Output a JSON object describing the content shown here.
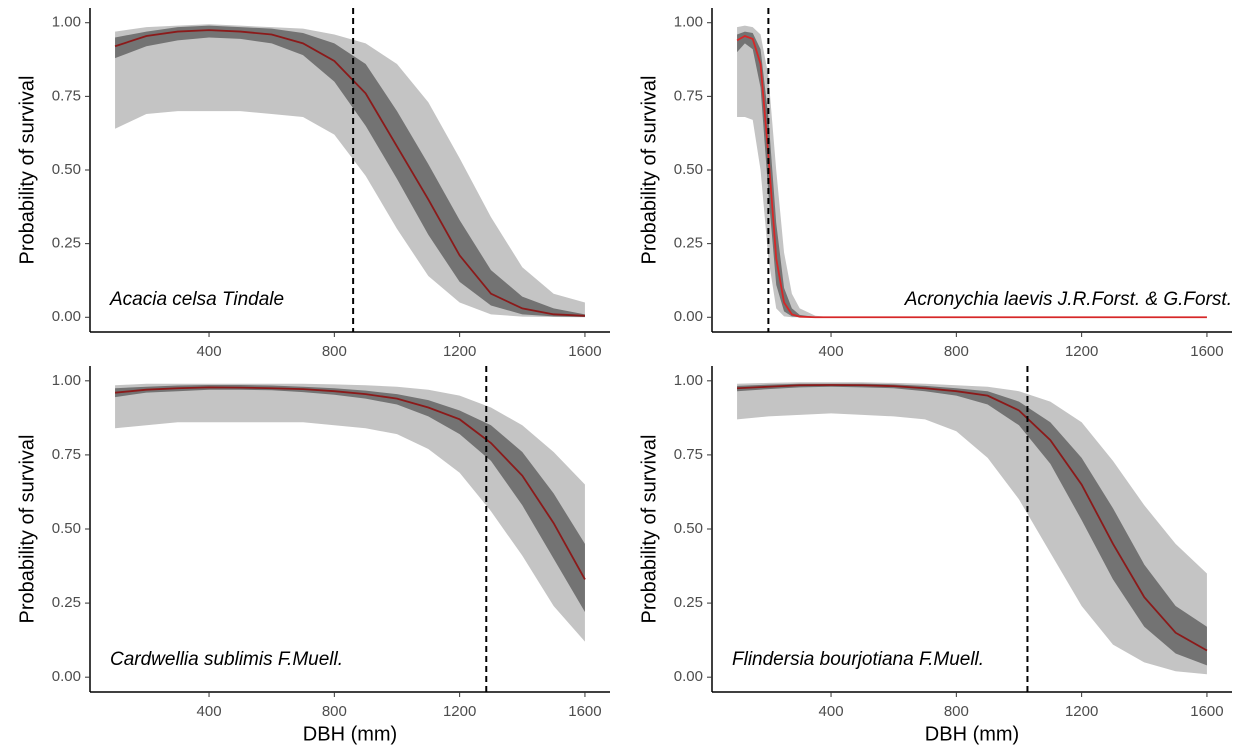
{
  "chart_data": [
    {
      "type": "line",
      "ylabel": "Probability of survival",
      "annotation": "Acacia celsa Tindale",
      "annotation_position": "bottom-left",
      "x": [
        100,
        200,
        300,
        400,
        500,
        600,
        700,
        800,
        900,
        1000,
        1100,
        1200,
        1300,
        1400,
        1500,
        1600
      ],
      "values": [
        0.92,
        0.955,
        0.97,
        0.975,
        0.97,
        0.96,
        0.93,
        0.87,
        0.76,
        0.58,
        0.4,
        0.21,
        0.08,
        0.03,
        0.01,
        0.005
      ],
      "color": "#8b1a1a",
      "bands": [
        {
          "color": "#c4c4c4",
          "lower": [
            0.64,
            0.69,
            0.7,
            0.7,
            0.7,
            0.69,
            0.68,
            0.62,
            0.48,
            0.3,
            0.14,
            0.05,
            0.01,
            0.002,
            0.001,
            0.0
          ],
          "upper": [
            0.97,
            0.985,
            0.99,
            0.995,
            0.99,
            0.985,
            0.98,
            0.96,
            0.93,
            0.86,
            0.73,
            0.54,
            0.34,
            0.17,
            0.08,
            0.05
          ]
        },
        {
          "color": "#737373",
          "lower": [
            0.88,
            0.92,
            0.94,
            0.95,
            0.945,
            0.93,
            0.89,
            0.8,
            0.65,
            0.47,
            0.28,
            0.12,
            0.04,
            0.01,
            0.003,
            0.001
          ],
          "upper": [
            0.95,
            0.97,
            0.985,
            0.99,
            0.985,
            0.98,
            0.965,
            0.93,
            0.86,
            0.7,
            0.52,
            0.33,
            0.16,
            0.07,
            0.03,
            0.01
          ]
        }
      ],
      "vline": 860,
      "xlim": [
        20,
        1680
      ],
      "ylim": [
        -0.05,
        1.05
      ],
      "xticks": [
        400,
        800,
        1200,
        1600
      ],
      "yticks": [
        {
          "value": 0,
          "label": "0.00"
        },
        0.25,
        {
          "value": 0.5,
          "label": "0.50"
        },
        0.75,
        {
          "value": 1,
          "label": "1.00"
        }
      ]
    },
    {
      "type": "line",
      "ylabel": "Probability of survival",
      "annotation": "Acronychia laevis J.R.Forst. & G.Forst.",
      "annotation_position": "bottom-right",
      "x": [
        100,
        125,
        150,
        175,
        200,
        225,
        250,
        275,
        300,
        350,
        400,
        600,
        800,
        1000,
        1200,
        1400,
        1600
      ],
      "values": [
        0.94,
        0.955,
        0.945,
        0.86,
        0.55,
        0.2,
        0.05,
        0.01,
        0.002,
        0,
        0,
        0,
        0,
        0,
        0,
        0,
        0
      ],
      "color": "#d62728",
      "bands": [
        {
          "color": "#c4c4c4",
          "lower": [
            0.68,
            0.68,
            0.67,
            0.5,
            0.2,
            0.03,
            0.003,
            0,
            0,
            0,
            0,
            0,
            0,
            0,
            0,
            0,
            0
          ],
          "upper": [
            0.985,
            0.99,
            0.985,
            0.96,
            0.82,
            0.5,
            0.22,
            0.08,
            0.03,
            0.005,
            0,
            0,
            0,
            0,
            0,
            0,
            0
          ]
        },
        {
          "color": "#737373",
          "lower": [
            0.9,
            0.93,
            0.91,
            0.78,
            0.42,
            0.11,
            0.02,
            0.003,
            0,
            0,
            0,
            0,
            0,
            0,
            0,
            0,
            0
          ],
          "upper": [
            0.96,
            0.97,
            0.965,
            0.91,
            0.68,
            0.32,
            0.1,
            0.03,
            0.008,
            0.001,
            0,
            0,
            0,
            0,
            0,
            0,
            0
          ]
        }
      ],
      "vline": 200,
      "xlim": [
        20,
        1680
      ],
      "ylim": [
        -0.05,
        1.05
      ],
      "xticks": [
        400,
        800,
        1200,
        1600
      ],
      "yticks": [
        {
          "value": 0,
          "label": "0.00"
        },
        0.25,
        {
          "value": 0.5,
          "label": "0.50"
        },
        0.75,
        {
          "value": 1,
          "label": "1.00"
        }
      ]
    },
    {
      "type": "line",
      "ylabel": "Probability of survival",
      "xlabel": "DBH (mm)",
      "annotation": "Cardwellia sublimis F.Muell.",
      "annotation_position": "bottom-left",
      "x": [
        100,
        200,
        300,
        400,
        500,
        600,
        700,
        800,
        900,
        1000,
        1100,
        1200,
        1300,
        1400,
        1500,
        1600
      ],
      "values": [
        0.96,
        0.97,
        0.975,
        0.978,
        0.977,
        0.975,
        0.972,
        0.965,
        0.955,
        0.94,
        0.91,
        0.87,
        0.79,
        0.68,
        0.52,
        0.33
      ],
      "color": "#8b1a1a",
      "bands": [
        {
          "color": "#c4c4c4",
          "lower": [
            0.84,
            0.85,
            0.86,
            0.86,
            0.86,
            0.86,
            0.86,
            0.85,
            0.84,
            0.82,
            0.77,
            0.69,
            0.56,
            0.41,
            0.24,
            0.12
          ],
          "upper": [
            0.985,
            0.99,
            0.99,
            0.99,
            0.99,
            0.99,
            0.99,
            0.988,
            0.985,
            0.98,
            0.97,
            0.95,
            0.91,
            0.85,
            0.76,
            0.65
          ]
        },
        {
          "color": "#737373",
          "lower": [
            0.945,
            0.96,
            0.965,
            0.97,
            0.97,
            0.968,
            0.962,
            0.953,
            0.94,
            0.92,
            0.88,
            0.82,
            0.73,
            0.58,
            0.4,
            0.22
          ],
          "upper": [
            0.975,
            0.98,
            0.984,
            0.986,
            0.986,
            0.984,
            0.98,
            0.975,
            0.967,
            0.955,
            0.935,
            0.9,
            0.85,
            0.76,
            0.62,
            0.45
          ]
        }
      ],
      "vline": 1285,
      "xlim": [
        20,
        1680
      ],
      "ylim": [
        -0.05,
        1.05
      ],
      "xticks": [
        400,
        800,
        1200,
        1600
      ],
      "yticks": [
        {
          "value": 0,
          "label": "0.00"
        },
        0.25,
        {
          "value": 0.5,
          "label": "0.50"
        },
        0.75,
        {
          "value": 1,
          "label": "1.00"
        }
      ]
    },
    {
      "type": "line",
      "ylabel": "Probability of survival",
      "xlabel": "DBH (mm)",
      "annotation": "Flindersia bourjotiana F.Muell.",
      "annotation_position": "bottom-left",
      "x": [
        100,
        200,
        300,
        400,
        500,
        600,
        700,
        800,
        900,
        1000,
        1100,
        1200,
        1300,
        1400,
        1500,
        1600
      ],
      "values": [
        0.975,
        0.98,
        0.985,
        0.986,
        0.985,
        0.982,
        0.975,
        0.965,
        0.95,
        0.9,
        0.8,
        0.65,
        0.45,
        0.27,
        0.15,
        0.09
      ],
      "color": "#8b1a1a",
      "bands": [
        {
          "color": "#c4c4c4",
          "lower": [
            0.87,
            0.88,
            0.885,
            0.89,
            0.885,
            0.88,
            0.87,
            0.83,
            0.74,
            0.6,
            0.42,
            0.24,
            0.11,
            0.05,
            0.02,
            0.01
          ],
          "upper": [
            0.99,
            0.993,
            0.995,
            0.995,
            0.995,
            0.993,
            0.99,
            0.985,
            0.98,
            0.965,
            0.93,
            0.86,
            0.73,
            0.58,
            0.45,
            0.35
          ]
        },
        {
          "color": "#737373",
          "lower": [
            0.965,
            0.972,
            0.978,
            0.98,
            0.978,
            0.975,
            0.965,
            0.95,
            0.92,
            0.85,
            0.72,
            0.53,
            0.33,
            0.17,
            0.08,
            0.04
          ],
          "upper": [
            0.983,
            0.987,
            0.99,
            0.99,
            0.99,
            0.988,
            0.983,
            0.975,
            0.965,
            0.93,
            0.86,
            0.74,
            0.57,
            0.38,
            0.24,
            0.17
          ]
        }
      ],
      "vline": 1027,
      "xlim": [
        20,
        1680
      ],
      "ylim": [
        -0.05,
        1.05
      ],
      "xticks": [
        400,
        800,
        1200,
        1600
      ],
      "yticks": [
        {
          "value": 0,
          "label": "0.00"
        },
        0.25,
        {
          "value": 0.5,
          "label": "0.50"
        },
        0.75,
        {
          "value": 1,
          "label": "1.00"
        }
      ]
    }
  ]
}
